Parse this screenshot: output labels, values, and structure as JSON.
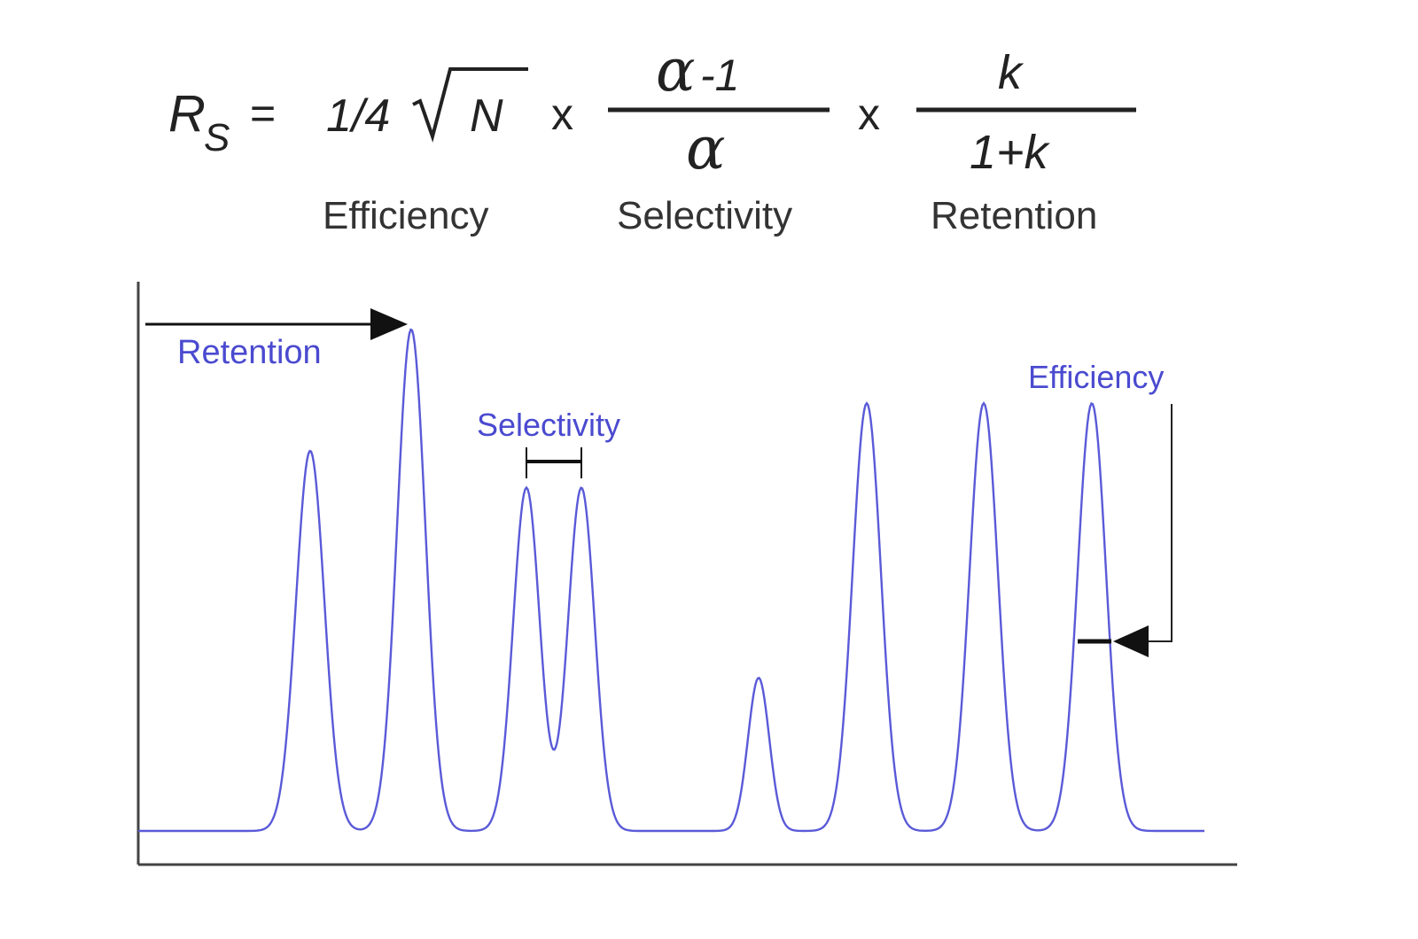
{
  "equation": {
    "lhs_symbol": "R",
    "lhs_subscript": "S",
    "equals": "=",
    "efficiency_coef": "1/4",
    "efficiency_var": "N",
    "times_1": "x",
    "times_2": "x",
    "selectivity_num_greek": "α",
    "selectivity_num_rest": " -1",
    "selectivity_den": "α",
    "retention_num": "k",
    "retention_den": "1+k",
    "caption_efficiency": "Efficiency",
    "caption_selectivity": "Selectivity",
    "caption_retention": "Retention"
  },
  "chromatogram": {
    "label_retention": "Retention",
    "label_selectivity": "Selectivity",
    "label_efficiency": "Efficiency",
    "trace_color": "#5a5ad8",
    "label_color": "#4a4ad0",
    "peaks": [
      {
        "name": "peak-1",
        "relative_height": 0.72
      },
      {
        "name": "peak-2",
        "relative_height": 0.95
      },
      {
        "name": "peak-3",
        "relative_height": 0.65
      },
      {
        "name": "peak-4",
        "relative_height": 0.65
      },
      {
        "name": "peak-5",
        "relative_height": 0.29
      },
      {
        "name": "peak-6",
        "relative_height": 0.81
      },
      {
        "name": "peak-7",
        "relative_height": 0.81
      },
      {
        "name": "peak-8",
        "relative_height": 0.81
      }
    ]
  }
}
